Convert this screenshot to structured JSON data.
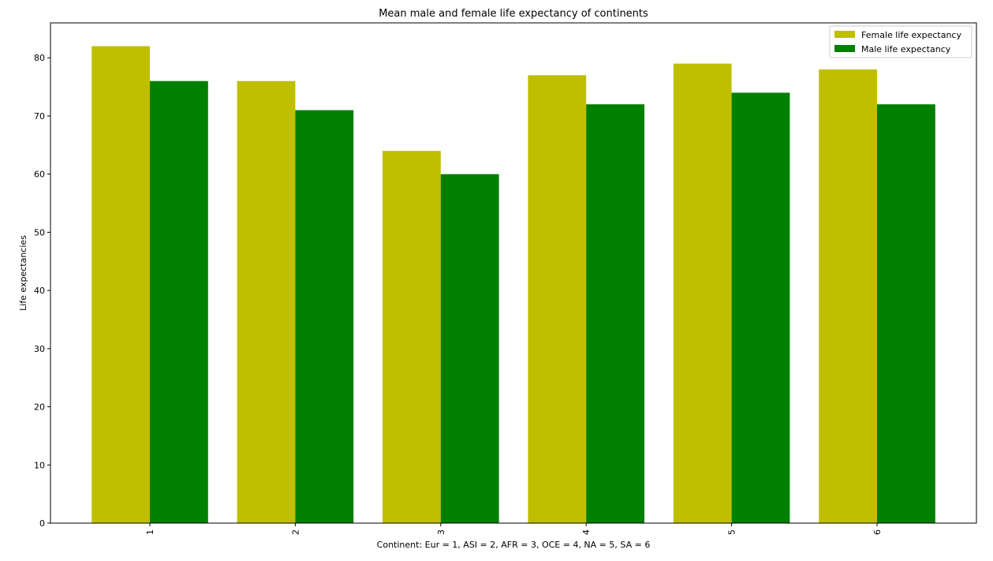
{
  "chart_data": {
    "type": "bar",
    "title": "Mean male and female life expectancy of continents",
    "xlabel": "Continent: Eur = 1, ASI = 2, AFR = 3, OCE = 4, NA = 5, SA = 6",
    "ylabel": "Life expectancies",
    "categories": [
      "1",
      "2",
      "3",
      "4",
      "5",
      "6"
    ],
    "ylim": [
      0,
      86
    ],
    "yticks": [
      0,
      10,
      20,
      30,
      40,
      50,
      60,
      70,
      80
    ],
    "grid": false,
    "legend_position": "top-right",
    "series": [
      {
        "name": "Female life expectancy",
        "color": "#bfbf00",
        "values": [
          82,
          76,
          64,
          77,
          79,
          78
        ]
      },
      {
        "name": "Male life expectancy",
        "color": "#008000",
        "values": [
          76,
          71,
          60,
          72,
          74,
          72
        ]
      }
    ]
  }
}
